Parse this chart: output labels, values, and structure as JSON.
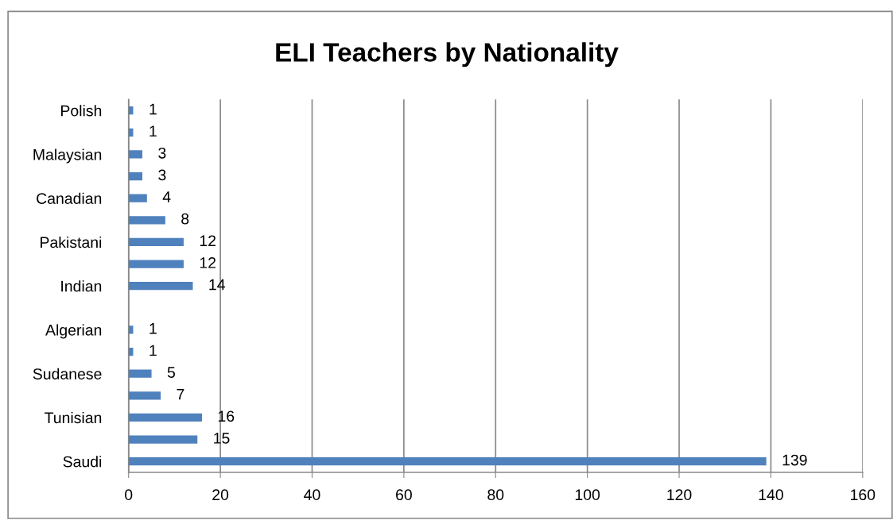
{
  "chart_data": {
    "type": "bar",
    "orientation": "horizontal",
    "title": "ELI Teachers by Nationality",
    "categories": [
      "Polish",
      null,
      "Malaysian",
      null,
      "Canadian",
      null,
      "Pakistani",
      null,
      "Indian",
      null,
      "Algerian",
      null,
      "Sudanese",
      null,
      "Tunisian",
      null,
      "Saudi"
    ],
    "values": [
      1,
      1,
      3,
      3,
      4,
      8,
      12,
      12,
      14,
      null,
      1,
      1,
      5,
      7,
      16,
      15,
      139
    ],
    "color": "#4f81bd",
    "xlim": [
      0,
      160
    ],
    "xticks": [
      0,
      20,
      40,
      60,
      80,
      100,
      120,
      140,
      160
    ],
    "grid": "x",
    "data_labels": true
  }
}
